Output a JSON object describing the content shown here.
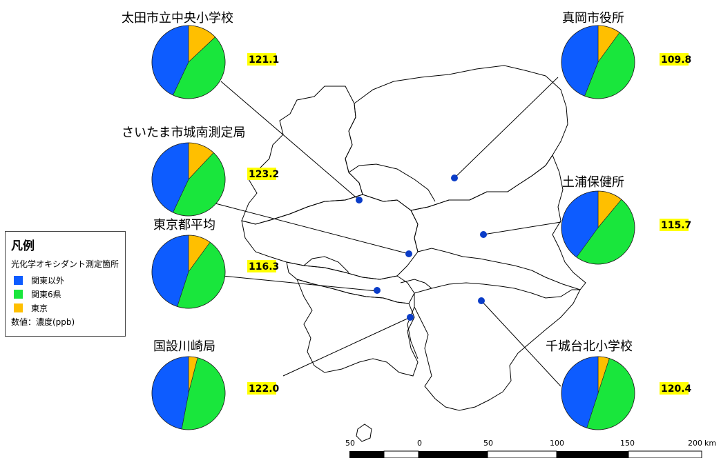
{
  "colors": {
    "outside": "#0d5cff",
    "six": "#19e63c",
    "tokyo": "#ffbf00",
    "dot": "#0a3cc8",
    "label_bg": "#ffff00"
  },
  "legend": {
    "title": "凡例",
    "subtitle": "光化学オキシダント測定箇所",
    "items": [
      {
        "label": "関東以外",
        "color": "#0d5cff"
      },
      {
        "label": "関東6県",
        "color": "#19e63c"
      },
      {
        "label": "東京",
        "color": "#ffbf00"
      }
    ],
    "note": "数値：濃度(ppb)"
  },
  "chart_data": [
    {
      "type": "pie",
      "title": "太田市立中央小学校",
      "value": "121.1",
      "series_names": [
        "関東以外",
        "関東6県",
        "東京"
      ],
      "values": [
        0.43,
        0.44,
        0.13
      ]
    },
    {
      "type": "pie",
      "title": "さいたま市城南測定局",
      "value": "123.2",
      "series_names": [
        "関東以外",
        "関東6県",
        "東京"
      ],
      "values": [
        0.43,
        0.45,
        0.12
      ]
    },
    {
      "type": "pie",
      "title": "東京都平均",
      "value": "116.3",
      "series_names": [
        "関東以外",
        "関東6県",
        "東京"
      ],
      "values": [
        0.45,
        0.45,
        0.1
      ]
    },
    {
      "type": "pie",
      "title": "国設川崎局",
      "value": "122.0",
      "series_names": [
        "関東以外",
        "関東6県",
        "東京"
      ],
      "values": [
        0.47,
        0.49,
        0.04
      ]
    },
    {
      "type": "pie",
      "title": "真岡市役所",
      "value": "109.8",
      "series_names": [
        "関東以外",
        "関東6県",
        "東京"
      ],
      "values": [
        0.44,
        0.46,
        0.1
      ]
    },
    {
      "type": "pie",
      "title": "土浦保健所",
      "value": "115.7",
      "series_names": [
        "関東以外",
        "関東6県",
        "東京"
      ],
      "values": [
        0.4,
        0.49,
        0.11
      ]
    },
    {
      "type": "pie",
      "title": "千城台北小学校",
      "value": "120.4",
      "series_names": [
        "関東以外",
        "関東6県",
        "東京"
      ],
      "values": [
        0.45,
        0.5,
        0.05
      ]
    }
  ],
  "scale_bar": {
    "labels": [
      "50",
      "0",
      "50",
      "100",
      "150",
      "200"
    ],
    "unit": "km"
  }
}
